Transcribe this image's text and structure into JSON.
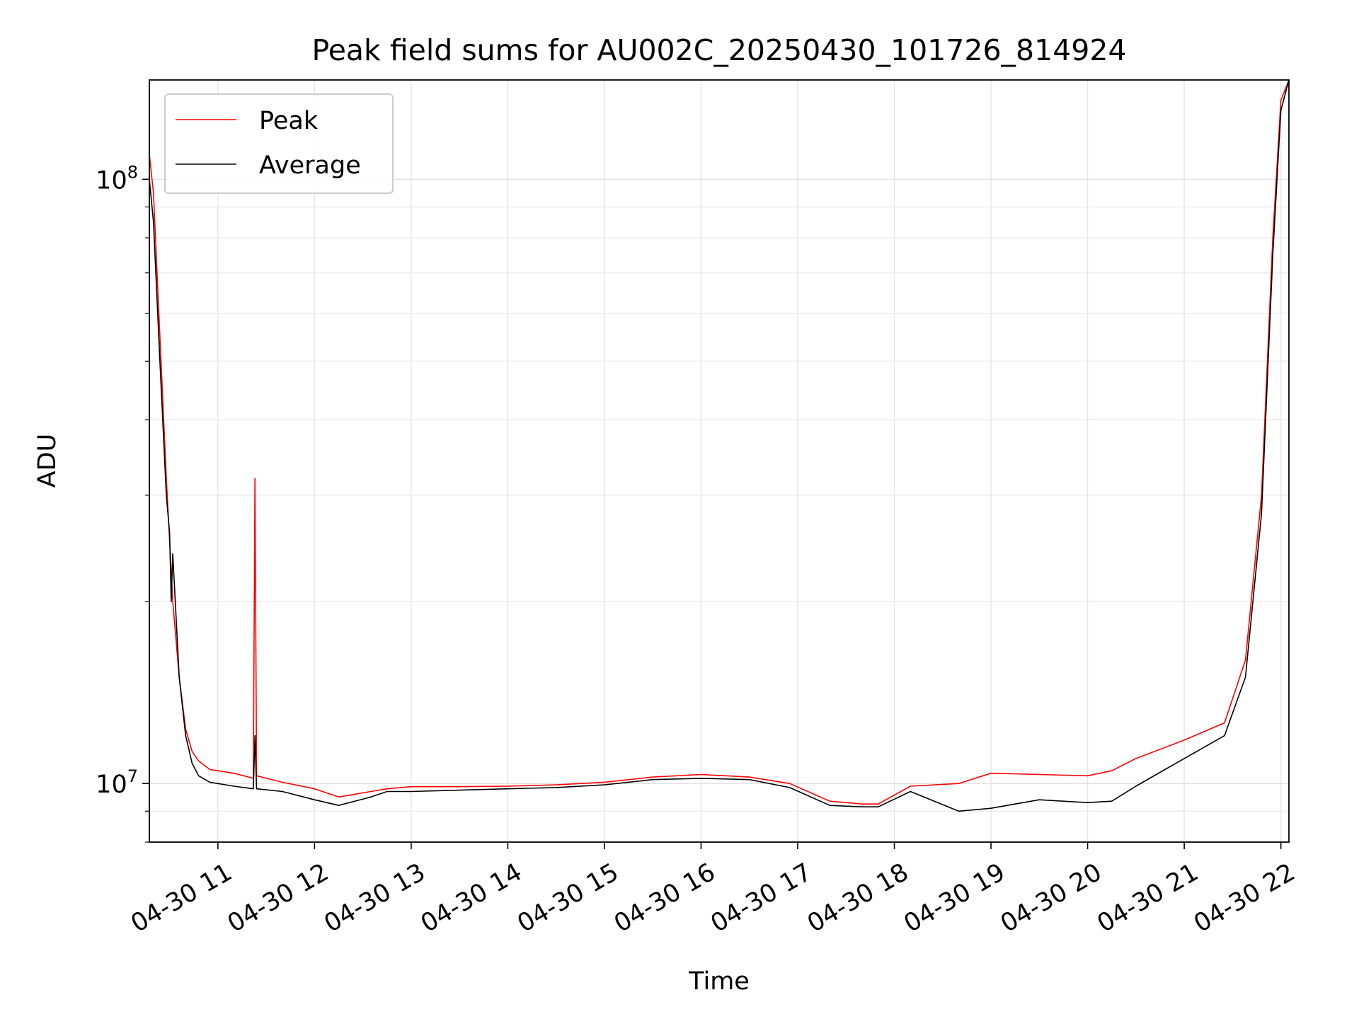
{
  "chart_data": {
    "type": "line",
    "title": "Peak field sums for AU002C_20250430_101726_814924",
    "xlabel": "Time",
    "ylabel": "ADU",
    "yscale": "log",
    "ylim": [
      8000000,
      146000000
    ],
    "xlim": [
      "2025-04-30 10:17:26",
      "2025-04-30 22:05:00"
    ],
    "grid": true,
    "legend_position": "top-left",
    "x_ticks": [
      {
        "value": "2025-04-30 11:00",
        "label": "04-30 11"
      },
      {
        "value": "2025-04-30 12:00",
        "label": "04-30 12"
      },
      {
        "value": "2025-04-30 13:00",
        "label": "04-30 13"
      },
      {
        "value": "2025-04-30 14:00",
        "label": "04-30 14"
      },
      {
        "value": "2025-04-30 15:00",
        "label": "04-30 15"
      },
      {
        "value": "2025-04-30 16:00",
        "label": "04-30 16"
      },
      {
        "value": "2025-04-30 17:00",
        "label": "04-30 17"
      },
      {
        "value": "2025-04-30 18:00",
        "label": "04-30 18"
      },
      {
        "value": "2025-04-30 19:00",
        "label": "04-30 19"
      },
      {
        "value": "2025-04-30 20:00",
        "label": "04-30 20"
      },
      {
        "value": "2025-04-30 21:00",
        "label": "04-30 21"
      },
      {
        "value": "2025-04-30 22:00",
        "label": "04-30 22"
      }
    ],
    "y_ticks": [
      {
        "value": 10000000,
        "base": "10",
        "exp": "7"
      },
      {
        "value": 100000000,
        "base": "10",
        "exp": "8"
      }
    ],
    "series": [
      {
        "name": "Peak",
        "color": "#ff0000",
        "x": [
          "2025-04-30 10:17:26",
          "2025-04-30 10:20",
          "2025-04-30 10:24",
          "2025-04-30 10:28",
          "2025-04-30 10:32",
          "2025-04-30 10:36",
          "2025-04-30 10:40",
          "2025-04-30 10:44",
          "2025-04-30 10:48",
          "2025-04-30 10:55",
          "2025-04-30 11:10",
          "2025-04-30 11:22",
          "2025-04-30 11:23",
          "2025-04-30 11:24",
          "2025-04-30 11:40",
          "2025-04-30 12:00",
          "2025-04-30 12:15",
          "2025-04-30 12:35",
          "2025-04-30 12:45",
          "2025-04-30 13:00",
          "2025-04-30 13:30",
          "2025-04-30 14:00",
          "2025-04-30 14:30",
          "2025-04-30 15:00",
          "2025-04-30 15:30",
          "2025-04-30 16:00",
          "2025-04-30 16:30",
          "2025-04-30 16:55",
          "2025-04-30 17:20",
          "2025-04-30 17:40",
          "2025-04-30 17:50",
          "2025-04-30 18:10",
          "2025-04-30 18:40",
          "2025-04-30 19:00",
          "2025-04-30 19:30",
          "2025-04-30 20:00",
          "2025-04-30 20:15",
          "2025-04-30 20:30",
          "2025-04-30 21:00",
          "2025-04-30 21:25",
          "2025-04-30 21:38",
          "2025-04-30 21:48",
          "2025-04-30 21:55",
          "2025-04-30 22:00",
          "2025-04-30 22:05"
        ],
        "y": [
          110000000,
          95000000,
          55000000,
          32000000,
          20000000,
          15000000,
          12300000,
          11300000,
          10900000,
          10550000,
          10400000,
          10200000,
          32000000,
          10300000,
          10050000,
          9800000,
          9500000,
          9700000,
          9800000,
          9880000,
          9880000,
          9900000,
          9950000,
          10050000,
          10250000,
          10350000,
          10250000,
          10000000,
          9350000,
          9250000,
          9250000,
          9900000,
          10000000,
          10400000,
          10350000,
          10300000,
          10500000,
          11000000,
          11800000,
          12600000,
          16000000,
          30000000,
          80000000,
          135000000,
          146000000
        ]
      },
      {
        "name": "Average",
        "color": "#000000",
        "x": [
          "2025-04-30 10:17:26",
          "2025-04-30 10:20",
          "2025-04-30 10:24",
          "2025-04-30 10:28",
          "2025-04-30 10:30",
          "2025-04-30 10:31",
          "2025-04-30 10:32",
          "2025-04-30 10:36",
          "2025-04-30 10:40",
          "2025-04-30 10:44",
          "2025-04-30 10:48",
          "2025-04-30 10:55",
          "2025-04-30 11:10",
          "2025-04-30 11:22",
          "2025-04-30 11:23",
          "2025-04-30 11:24",
          "2025-04-30 11:40",
          "2025-04-30 12:00",
          "2025-04-30 12:15",
          "2025-04-30 12:35",
          "2025-04-30 12:45",
          "2025-04-30 13:00",
          "2025-04-30 13:30",
          "2025-04-30 14:00",
          "2025-04-30 14:30",
          "2025-04-30 15:00",
          "2025-04-30 15:30",
          "2025-04-30 16:00",
          "2025-04-30 16:30",
          "2025-04-30 16:55",
          "2025-04-30 17:20",
          "2025-04-30 17:40",
          "2025-04-30 17:50",
          "2025-04-30 18:10",
          "2025-04-30 18:40",
          "2025-04-30 19:00",
          "2025-04-30 19:30",
          "2025-04-30 20:00",
          "2025-04-30 20:15",
          "2025-04-30 20:30",
          "2025-04-30 21:00",
          "2025-04-30 21:25",
          "2025-04-30 21:38",
          "2025-04-30 21:48",
          "2025-04-30 21:55",
          "2025-04-30 22:00",
          "2025-04-30 22:05"
        ],
        "y": [
          100000000,
          85000000,
          50000000,
          30000000,
          26000000,
          20000000,
          24000000,
          15000000,
          12000000,
          10800000,
          10300000,
          10050000,
          9900000,
          9800000,
          12000000,
          9800000,
          9700000,
          9400000,
          9200000,
          9500000,
          9700000,
          9700000,
          9750000,
          9800000,
          9850000,
          9950000,
          10150000,
          10200000,
          10150000,
          9850000,
          9200000,
          9150000,
          9150000,
          9700000,
          9000000,
          9100000,
          9400000,
          9300000,
          9350000,
          9900000,
          11000000,
          12000000,
          15000000,
          28000000,
          75000000,
          130000000,
          146000000
        ]
      }
    ]
  }
}
